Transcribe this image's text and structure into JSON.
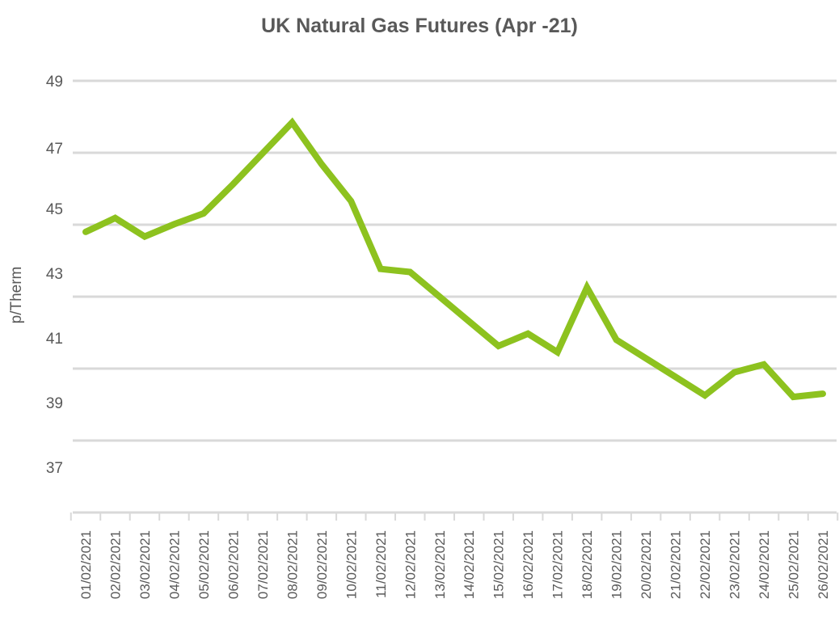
{
  "chart_data": {
    "type": "line",
    "title": "UK Natural Gas Futures (Apr -21)",
    "xlabel": "",
    "ylabel": "p/Therm",
    "ylim": [
      35,
      49
    ],
    "yticks": [
      37,
      39,
      41,
      43,
      45,
      47,
      49
    ],
    "grid": true,
    "line_color": "#8dc21f",
    "categories": [
      "01/02/2021",
      "02/02/2021",
      "03/02/2021",
      "04/02/2021",
      "05/02/2021",
      "06/02/2021",
      "07/02/2021",
      "08/02/2021",
      "09/02/2021",
      "10/02/2021",
      "11/02/2021",
      "12/02/2021",
      "13/02/2021",
      "14/02/2021",
      "15/02/2021",
      "16/02/2021",
      "17/02/2021",
      "18/02/2021",
      "19/02/2021",
      "20/02/2021",
      "21/02/2021",
      "22/02/2021",
      "23/02/2021",
      "24/02/2021",
      "25/02/2021",
      "26/02/2021"
    ],
    "series": [
      {
        "values": [
          44.1,
          44.55,
          43.95,
          44.35,
          44.7,
          45.65,
          46.65,
          47.65,
          46.3,
          45.1,
          42.9,
          42.8,
          42.0,
          41.2,
          40.4,
          40.8,
          40.2,
          42.3,
          40.6,
          40.0,
          39.4,
          38.8,
          39.55,
          39.8,
          38.75,
          38.85
        ]
      }
    ]
  }
}
